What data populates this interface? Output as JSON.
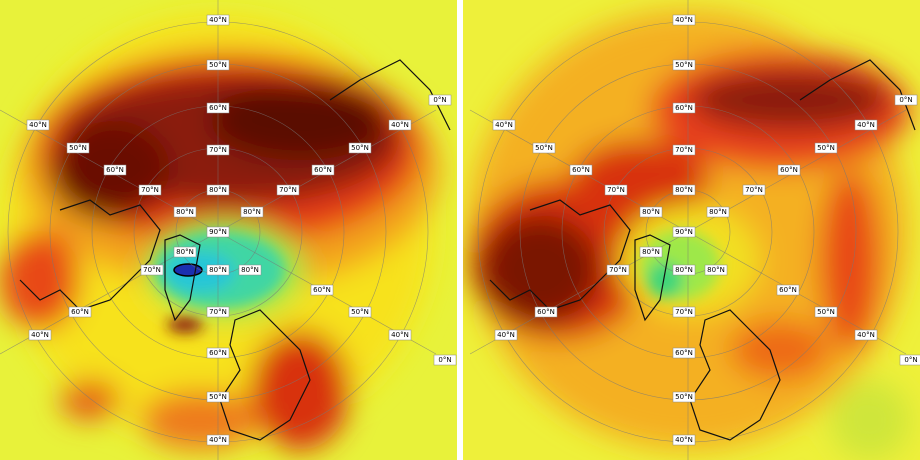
{
  "panels": [
    {
      "labels": [
        "40°N",
        "50°N",
        "60°N",
        "70°N",
        "80°N",
        "90°N",
        "80°N",
        "70°N",
        "60°N",
        "50°N",
        "40°N",
        "40°N",
        "50°N",
        "60°N",
        "70°N",
        "80°N",
        "40°N",
        "50°N",
        "60°N",
        "70°N",
        "80°N",
        "80°N",
        "70°N",
        "60°N",
        "40°N",
        "80°N",
        "60°N",
        "50°N",
        "40°N",
        "0°N",
        "0°N"
      ]
    },
    {
      "labels": [
        "40°N",
        "50°N",
        "60°N",
        "70°N",
        "80°N",
        "90°N",
        "80°N",
        "70°N",
        "60°N",
        "50°N",
        "40°N",
        "40°N",
        "50°N",
        "60°N",
        "70°N",
        "80°N",
        "40°N",
        "50°N",
        "60°N",
        "70°N",
        "80°N",
        "80°N",
        "70°N",
        "60°N",
        "40°N",
        "80°N",
        "60°N",
        "50°N",
        "40°N",
        "0°N",
        "0°N"
      ]
    }
  ]
}
